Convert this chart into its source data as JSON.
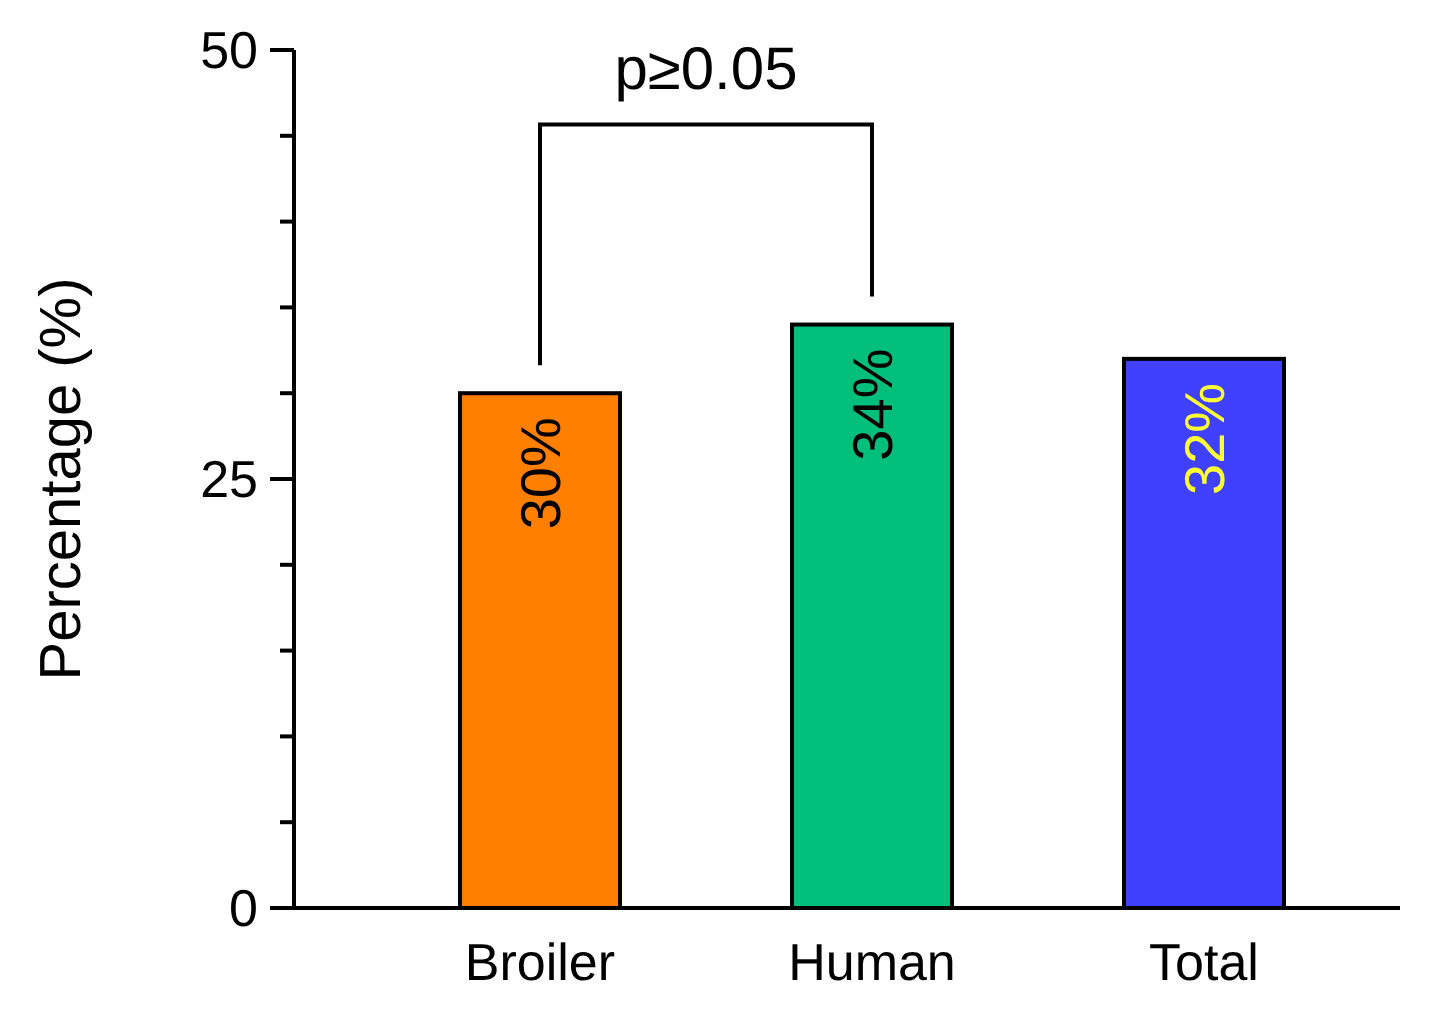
{
  "chart_data": {
    "type": "bar",
    "ylabel": "Percentage (%)",
    "categories": [
      "Broiler",
      "Human",
      "Total"
    ],
    "values": [
      30,
      34,
      32
    ],
    "colors": [
      "#ff7f00",
      "#00bf7a",
      "#4040ff"
    ],
    "value_labels": [
      "30%",
      "34%",
      "32%"
    ],
    "ylim": [
      0,
      50
    ],
    "yticks": [
      0,
      {
        "value": 5,
        "label": null
      },
      {
        "value": 10,
        "label": null
      },
      {
        "value": 15,
        "label": null
      },
      {
        "value": 20,
        "label": null
      },
      25,
      {
        "value": 30,
        "label": null
      },
      {
        "value": 35,
        "label": null
      },
      {
        "value": 40,
        "label": null
      },
      {
        "value": 45,
        "label": null
      },
      50
    ],
    "annotations": [
      "p≥0.05"
    ],
    "grid": false
  }
}
